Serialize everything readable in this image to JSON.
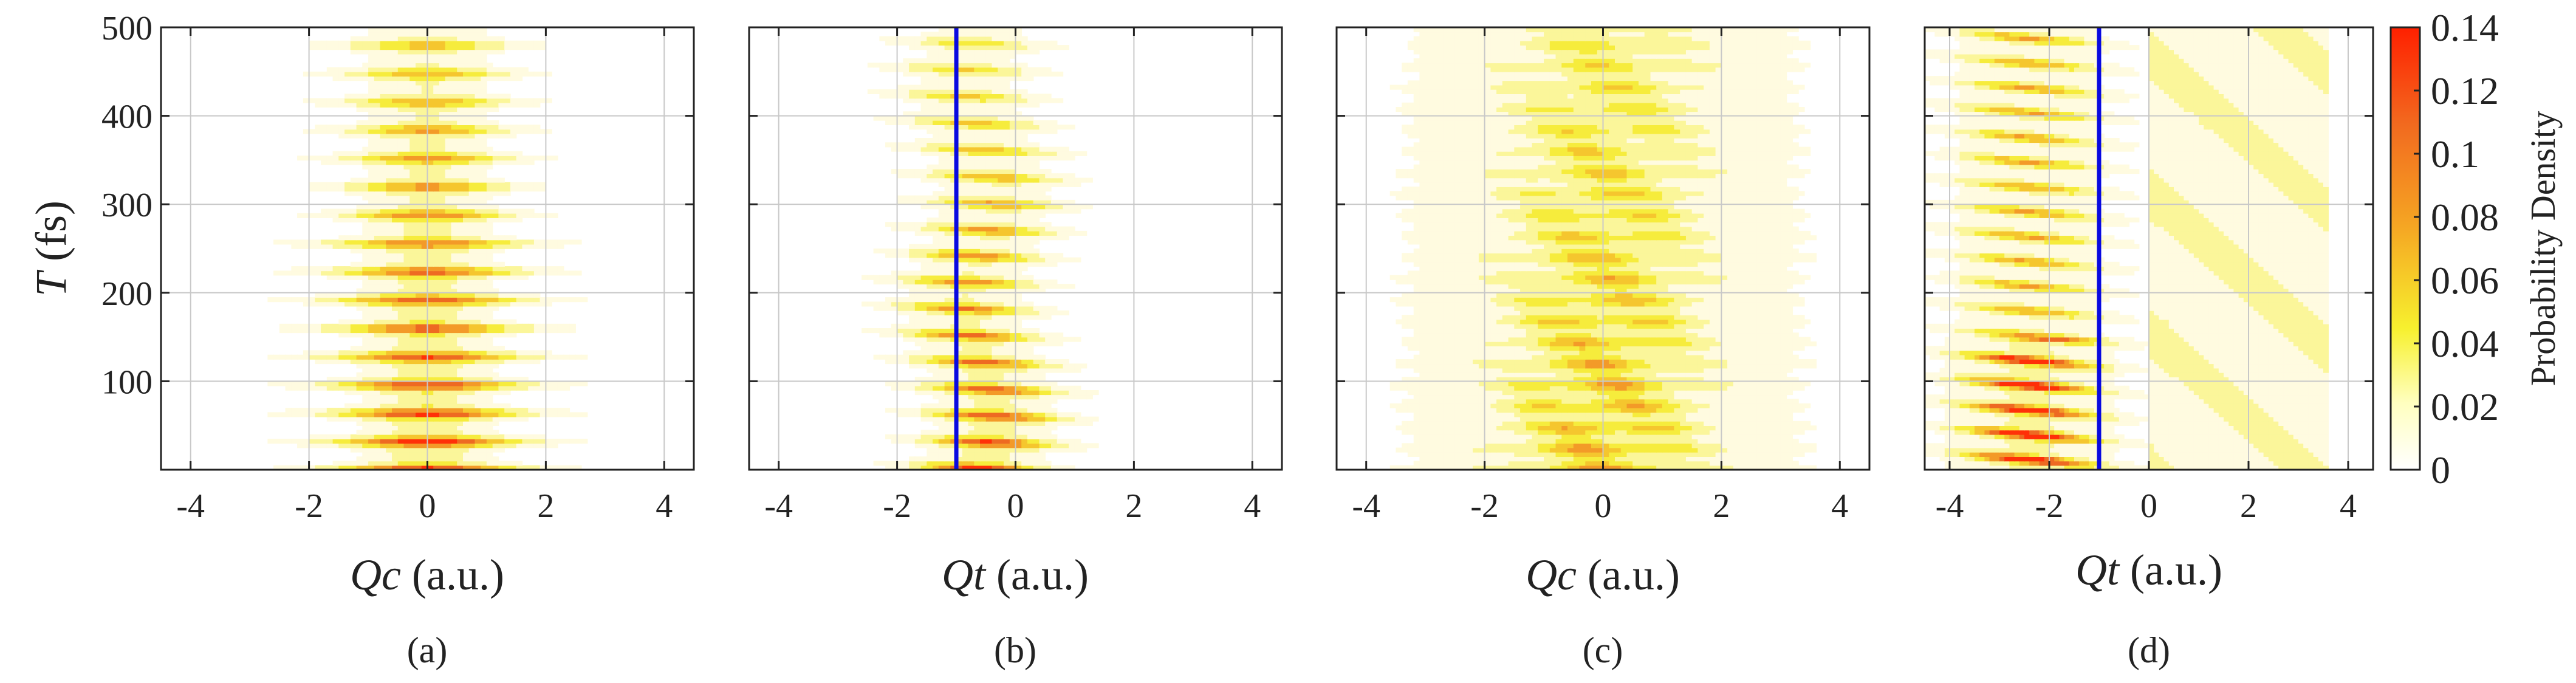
{
  "figure": {
    "title": "",
    "colorbar_label": "Probability Density",
    "colors": {
      "low": "#ffffe0",
      "mid": "#f7f02e",
      "orange": "#f5a623",
      "high": "#ff2000",
      "line": "#0a0ae0"
    }
  },
  "chart_data": [
    {
      "id": "a",
      "type": "heatmap",
      "panel_label": "(a)",
      "xlabel_var": "Qc",
      "xlabel_unit": " (a.u.)",
      "ylabel_var": "T",
      "ylabel_unit": " (fs)",
      "xlim": [
        -4.5,
        4.5
      ],
      "ylim": [
        0,
        500
      ],
      "xticks": [
        -4,
        -2,
        0,
        2,
        4
      ],
      "xtick_labels": [
        "-4",
        "-2",
        "0",
        "2",
        "4"
      ],
      "yticks": [
        100,
        200,
        300,
        400,
        500
      ],
      "ytick_labels": [
        "100",
        "200",
        "300",
        "400",
        "500"
      ],
      "grid": true,
      "model": "narrow",
      "vline": null
    },
    {
      "id": "b",
      "type": "heatmap",
      "panel_label": "(b)",
      "xlabel_var": "Qt",
      "xlabel_unit": " (a.u.)",
      "ylabel_var": "",
      "ylabel_unit": "",
      "xlim": [
        -4.5,
        4.5
      ],
      "ylim": [
        0,
        500
      ],
      "xticks": [
        -4,
        -2,
        0,
        2,
        4
      ],
      "xtick_labels": [
        "-4",
        "-2",
        "0",
        "2",
        "4"
      ],
      "yticks": [
        100,
        200,
        300,
        400,
        500
      ],
      "ytick_labels": [],
      "grid": true,
      "model": "shifted",
      "vline": -1.0
    },
    {
      "id": "c",
      "type": "heatmap",
      "panel_label": "(c)",
      "xlabel_var": "Qc",
      "xlabel_unit": " (a.u.)",
      "ylabel_var": "",
      "ylabel_unit": "",
      "xlim": [
        -4.5,
        4.5
      ],
      "ylim": [
        0,
        500
      ],
      "xticks": [
        -4,
        -2,
        0,
        2,
        4
      ],
      "xtick_labels": [
        "-4",
        "-2",
        "0",
        "2",
        "4"
      ],
      "yticks": [
        100,
        200,
        300,
        400,
        500
      ],
      "ytick_labels": [],
      "grid": true,
      "model": "broad",
      "vline": null
    },
    {
      "id": "d",
      "type": "heatmap",
      "panel_label": "(d)",
      "xlabel_var": "Qt",
      "xlabel_unit": " (a.u.)",
      "ylabel_var": "",
      "ylabel_unit": "",
      "xlim": [
        -4.5,
        4.5
      ],
      "ylim": [
        0,
        500
      ],
      "xticks": [
        -4,
        -2,
        0,
        2,
        4
      ],
      "xtick_labels": [
        "-4",
        "-2",
        "0",
        "2",
        "4"
      ],
      "yticks": [
        100,
        200,
        300,
        400,
        500
      ],
      "ytick_labels": [],
      "grid": true,
      "model": "split",
      "vline": -1.0
    }
  ],
  "colorbar": {
    "min": 0,
    "max": 0.14,
    "ticks": [
      "0",
      "0.02",
      "0.04",
      "0.06",
      "0.08",
      "0.1",
      "0.12",
      "0.14"
    ],
    "tick_values": [
      0,
      0.02,
      0.04,
      0.06,
      0.08,
      0.1,
      0.12,
      0.14
    ]
  }
}
